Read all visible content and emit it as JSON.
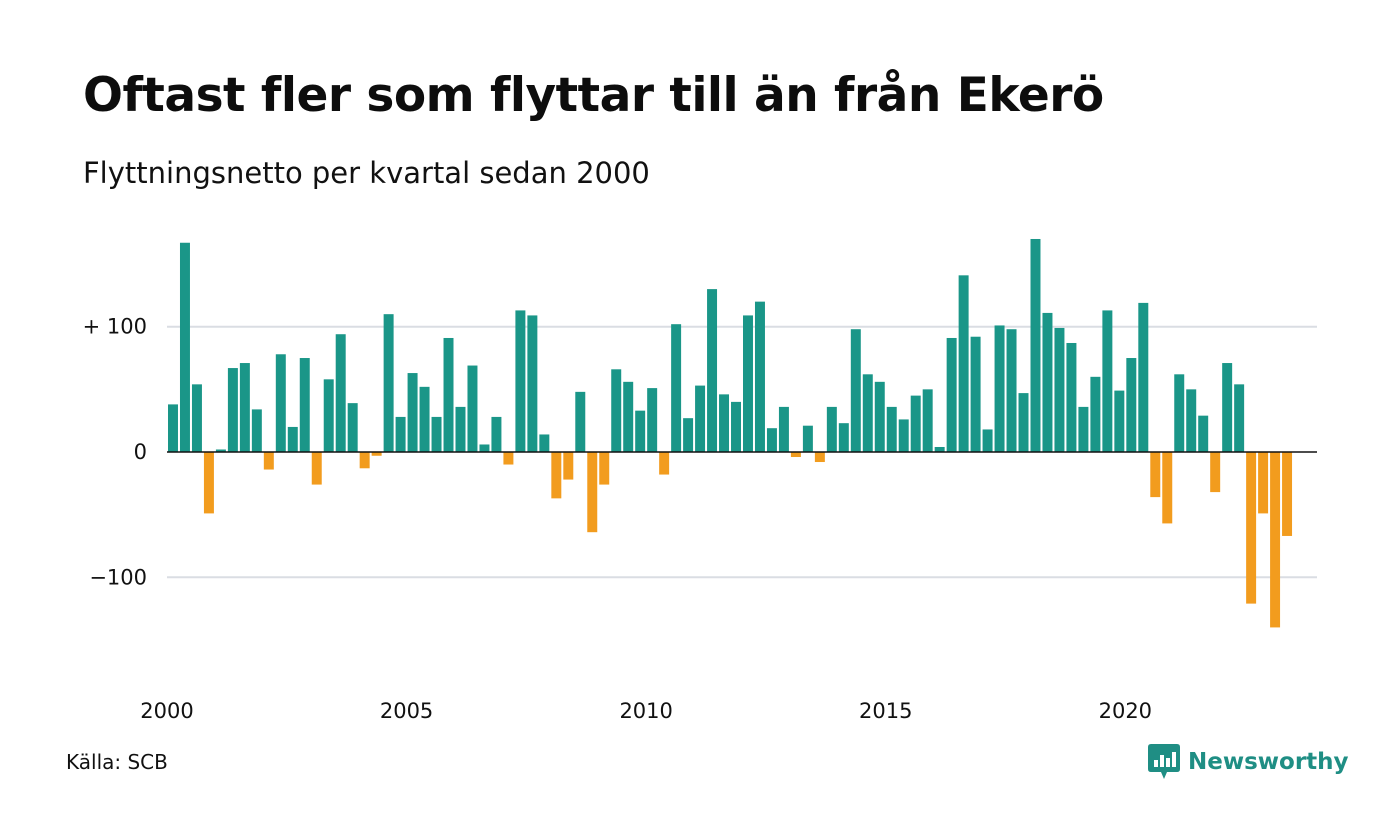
{
  "title": "Oftast fler som flyttar till än från Ekerö",
  "subtitle": "Flyttningsnetto per kvartal sedan 2000",
  "source": "Källa: SCB",
  "brand": "Newsworthy",
  "colors": {
    "positive": "#1a9688",
    "negative": "#f29c1e",
    "grid": "#dadde3",
    "zero_line": "#111111"
  },
  "chart_data": {
    "type": "bar",
    "title": "Oftast fler som flyttar till än från Ekerö",
    "subtitle": "Flyttningsnetto per kvartal sedan 2000",
    "ylim": [
      -170,
      170
    ],
    "xlim": [
      2000.0,
      2024.0
    ],
    "grid": true,
    "yticks": [
      {
        "value": 100,
        "label": "+ 100"
      },
      {
        "value": 0,
        "label": "0"
      },
      {
        "value": -100,
        "label": "−100"
      }
    ],
    "xticks": [
      {
        "value": 2000,
        "label": "2000"
      },
      {
        "value": 2005,
        "label": "2005"
      },
      {
        "value": 2010,
        "label": "2010"
      },
      {
        "value": 2015,
        "label": "2015"
      },
      {
        "value": 2020,
        "label": "2020"
      }
    ],
    "start_year": 2000,
    "periods_per_year": 4,
    "values": [
      38,
      167,
      54,
      -49,
      2,
      67,
      71,
      34,
      -14,
      78,
      20,
      75,
      -26,
      58,
      94,
      39,
      -13,
      -3,
      110,
      28,
      63,
      52,
      28,
      91,
      36,
      69,
      6,
      28,
      -10,
      113,
      109,
      14,
      -37,
      -22,
      48,
      -64,
      -26,
      66,
      56,
      33,
      51,
      -18,
      102,
      27,
      53,
      130,
      46,
      40,
      109,
      120,
      19,
      36,
      -4,
      21,
      -8,
      36,
      23,
      98,
      62,
      56,
      36,
      26,
      45,
      50,
      4,
      91,
      141,
      92,
      18,
      101,
      98,
      47,
      170,
      111,
      99,
      87,
      36,
      60,
      113,
      49,
      75,
      119,
      -36,
      -57,
      62,
      50,
      29,
      -32,
      71,
      54,
      -121,
      -49,
      -140,
      -67
    ]
  }
}
